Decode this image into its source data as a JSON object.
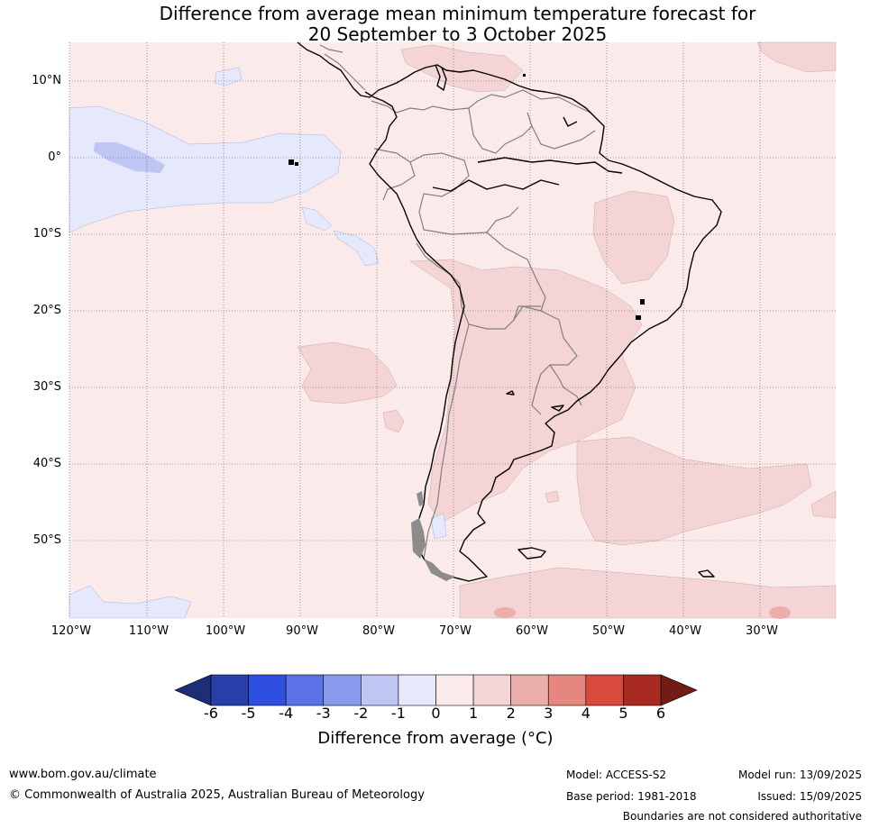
{
  "title": {
    "line1": "Difference from average mean minimum temperature forecast for",
    "line2": "20 September to 3 October 2025"
  },
  "map": {
    "lat_labels": [
      "10°N",
      "0°",
      "10°S",
      "20°S",
      "30°S",
      "40°S",
      "50°S"
    ],
    "lon_labels": [
      "120°W",
      "110°W",
      "100°W",
      "90°W",
      "80°W",
      "70°W",
      "60°W",
      "50°W",
      "40°W",
      "30°W"
    ]
  },
  "colorbar": {
    "ticks": [
      "-6",
      "-5",
      "-4",
      "-3",
      "-2",
      "-1",
      "0",
      "1",
      "2",
      "3",
      "4",
      "5",
      "6"
    ],
    "colors": [
      "#283ea9",
      "#2f4fe0",
      "#5b72e7",
      "#8999ec",
      "#bfc6f3",
      "#e6e9fb",
      "#fbeaea",
      "#f4d4d4",
      "#ebaeab",
      "#e5877e",
      "#d84b3c",
      "#a82a20"
    ],
    "under_color": "#1d2d78",
    "over_color": "#711c17",
    "label": "Difference from average (°C)"
  },
  "footer": {
    "website": "www.bom.gov.au/climate",
    "copyright": "© Commonwealth of Australia 2025, Australian Bureau of Meteorology",
    "model": "Model: ACCESS-S2",
    "base_period": "Base period: 1981-2018",
    "model_run": "Model run: 13/09/2025",
    "issued": "Issued: 15/09/2025",
    "disclaimer": "Boundaries are not considered authoritative"
  }
}
